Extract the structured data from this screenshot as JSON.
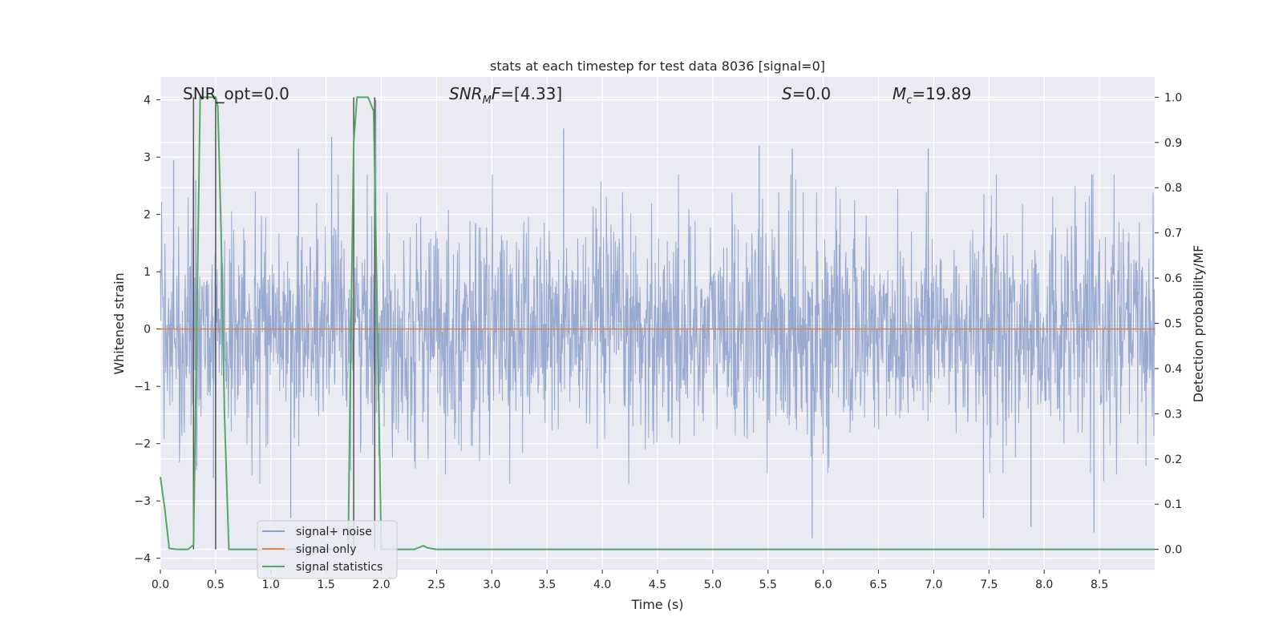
{
  "chart_data": {
    "type": "line",
    "title": "stats at each timestep for test data 8036 [signal=0]",
    "xlabel": "Time (s)",
    "ylabel_left": "Whitened strain",
    "ylabel_right": "Detection probability/MF",
    "xlim": [
      0.0,
      9.0
    ],
    "ylim_left": [
      -4.2,
      4.4
    ],
    "ylim_right": [
      -0.045,
      1.045
    ],
    "x_ticks": [
      "0.0",
      "0.5",
      "1.0",
      "1.5",
      "2.0",
      "2.5",
      "3.0",
      "3.5",
      "4.0",
      "4.5",
      "5.0",
      "5.5",
      "6.0",
      "6.5",
      "7.0",
      "7.5",
      "8.0",
      "8.5"
    ],
    "y_ticks_left": [
      "4",
      "3",
      "2",
      "1",
      "0",
      "−1",
      "−2",
      "−3",
      "−4"
    ],
    "y_ticks_right": [
      "1.0",
      "0.9",
      "0.8",
      "0.7",
      "0.6",
      "0.5",
      "0.4",
      "0.3",
      "0.2",
      "0.1",
      "0.0"
    ],
    "grid": true,
    "legend_position": "lower-left",
    "annotations": {
      "snr_opt": "SNR_opt=0.0",
      "snr_mf": "=[4.33]",
      "s_stat": "=0.0",
      "mc": "=19.89"
    },
    "series": [
      {
        "name": "signal+ noise",
        "color": "#8fa3cc",
        "description": "dense whitened-strain noise, amplitude envelope about ±2.5, peaks near 3.5 and -3.6",
        "peaks": [
          {
            "x": 0.12,
            "y": 2.95
          },
          {
            "x": 0.32,
            "y": 2.6
          },
          {
            "x": 0.33,
            "y": -2.4
          },
          {
            "x": 0.48,
            "y": -2.6
          },
          {
            "x": 1.18,
            "y": -3.3
          },
          {
            "x": 1.25,
            "y": 3.15
          },
          {
            "x": 1.55,
            "y": 3.35
          },
          {
            "x": 1.95,
            "y": 4.0
          },
          {
            "x": 3.65,
            "y": 3.5
          },
          {
            "x": 5.42,
            "y": 3.2
          },
          {
            "x": 5.72,
            "y": 3.15
          },
          {
            "x": 5.9,
            "y": -3.65
          },
          {
            "x": 6.95,
            "y": 3.15
          },
          {
            "x": 7.88,
            "y": -3.45
          },
          {
            "x": 8.45,
            "y": -3.55
          },
          {
            "x": 7.45,
            "y": -3.3
          }
        ]
      },
      {
        "name": "signal only",
        "color": "#dd8452",
        "x": [
          0.0,
          9.0
        ],
        "y": [
          0.0,
          0.0
        ]
      },
      {
        "name": "signal statistics",
        "color": "#55a868",
        "axis": "right",
        "x": [
          0.0,
          0.04,
          0.08,
          0.15,
          0.25,
          0.3,
          0.36,
          0.38,
          0.4,
          0.48,
          0.5,
          0.52,
          0.55,
          0.58,
          0.62,
          0.7,
          0.9,
          1.2,
          1.5,
          1.7,
          1.72,
          1.75,
          1.78,
          1.82,
          1.88,
          1.93,
          1.95,
          2.0,
          2.05,
          2.3,
          2.38,
          2.42,
          2.5,
          3.0,
          9.0
        ],
        "y": [
          0.16,
          0.09,
          0.002,
          0.0,
          0.0,
          0.01,
          1.0,
          1.0,
          1.0,
          1.0,
          1.0,
          0.98,
          0.7,
          0.3,
          0.0,
          0.0,
          0.0,
          0.0,
          0.0,
          0.0,
          0.4,
          0.9,
          1.0,
          1.0,
          1.0,
          0.97,
          0.7,
          0.0,
          0.0,
          0.0,
          0.008,
          0.003,
          0.0,
          0.0,
          0.0
        ]
      }
    ],
    "vertical_markers": {
      "color": "#555555",
      "lines": [
        {
          "x": 0.3,
          "y_top_right": 1.0,
          "y_bottom_right": 0.0
        },
        {
          "x": 0.5,
          "y_top_right": 1.0,
          "y_bottom_right": 0.0
        },
        {
          "x": 1.75,
          "y_top_right": 1.0,
          "y_bottom_right": 0.0
        },
        {
          "x": 1.94,
          "y_top_right": 1.0,
          "y_bottom_right": 0.0
        }
      ]
    }
  }
}
